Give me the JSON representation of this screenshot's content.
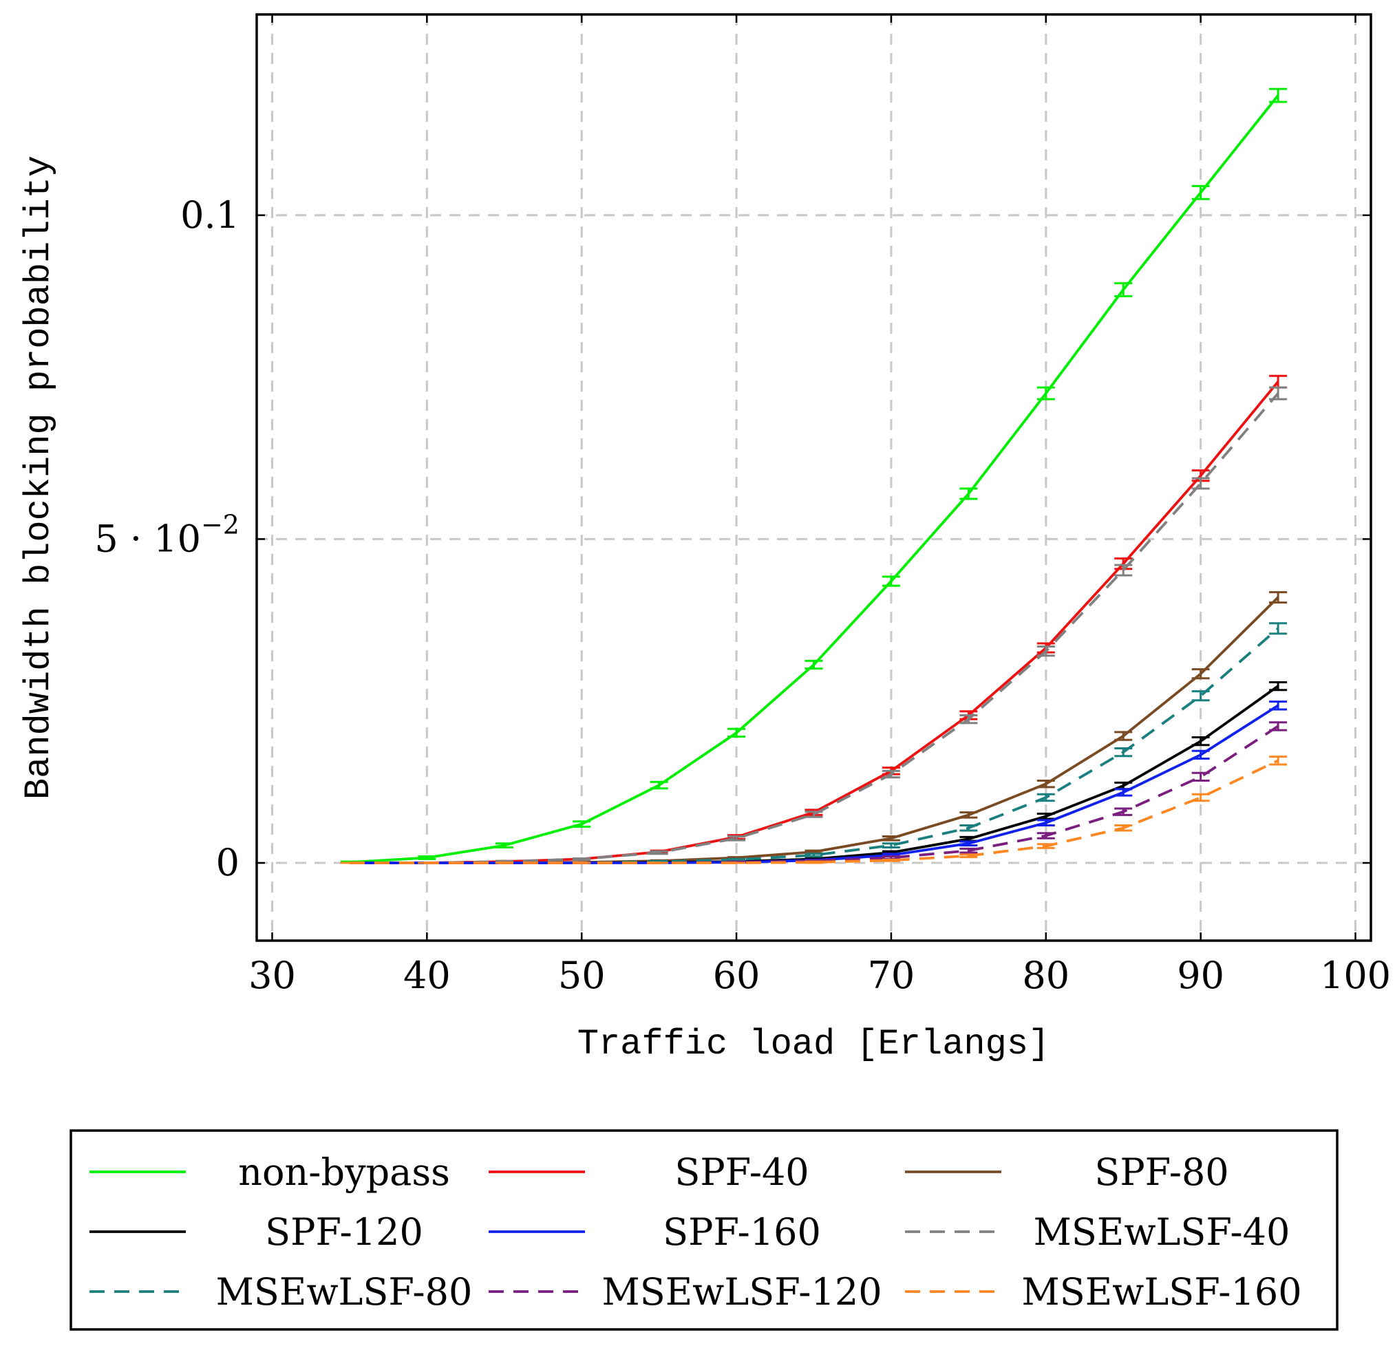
{
  "chart_data": {
    "type": "line",
    "title": "",
    "xlabel": "Traffic load [Erlangs]",
    "ylabel": "Bandwidth blocking probability",
    "xlim": [
      29,
      101
    ],
    "ylim": [
      -0.012,
      0.131
    ],
    "xticks": [
      30,
      40,
      50,
      60,
      70,
      80,
      90,
      100
    ],
    "xtick_labels": [
      "30",
      "40",
      "50",
      "60",
      "70",
      "80",
      "90",
      "100"
    ],
    "yticks": [
      0,
      0.05,
      0.1
    ],
    "ytick_labels": [
      "0",
      "5 · 10",
      "0.1"
    ],
    "ytick_exponent": "−2",
    "grid": true,
    "error_bars": true,
    "legend_position": "below",
    "x": [
      35,
      40,
      45,
      50,
      55,
      60,
      65,
      70,
      75,
      80,
      85,
      90,
      95
    ],
    "series": [
      {
        "name": "non-bypass",
        "color": "#00ee00",
        "dash": "solid",
        "values": [
          0.0001,
          0.0008,
          0.0027,
          0.006,
          0.012,
          0.0201,
          0.0306,
          0.0435,
          0.057,
          0.0725,
          0.0885,
          0.1035,
          0.1185
        ],
        "errors": [
          0.0001,
          0.0002,
          0.0003,
          0.0004,
          0.0005,
          0.0006,
          0.0006,
          0.0007,
          0.0008,
          0.0009,
          0.001,
          0.001,
          0.001
        ]
      },
      {
        "name": "SPF-40",
        "color": "#ee1111",
        "dash": "solid",
        "values": [
          0,
          0,
          0.0002,
          0.0006,
          0.0017,
          0.004,
          0.0078,
          0.0142,
          0.0228,
          0.0332,
          0.0462,
          0.0598,
          0.0743
        ],
        "errors": [
          0,
          0,
          0.0001,
          0.0001,
          0.0002,
          0.0003,
          0.0004,
          0.0005,
          0.0006,
          0.0007,
          0.0008,
          0.0008,
          0.0009
        ]
      },
      {
        "name": "SPF-80",
        "color": "#7a4a22",
        "dash": "solid",
        "values": [
          0,
          0,
          0,
          0.0001,
          0.0003,
          0.0008,
          0.0017,
          0.0038,
          0.0074,
          0.0122,
          0.0196,
          0.0292,
          0.041
        ],
        "errors": [
          0,
          0,
          0,
          0,
          0.0001,
          0.0001,
          0.0002,
          0.0003,
          0.0004,
          0.0005,
          0.0006,
          0.0007,
          0.0008
        ]
      },
      {
        "name": "SPF-120",
        "color": "#000000",
        "dash": "solid",
        "values": [
          0,
          0,
          0,
          0,
          0.0001,
          0.0002,
          0.0006,
          0.0016,
          0.0037,
          0.0072,
          0.0119,
          0.0188,
          0.0273
        ],
        "errors": [
          0,
          0,
          0,
          0,
          0,
          0.0001,
          0.0001,
          0.0002,
          0.0003,
          0.0004,
          0.0005,
          0.0006,
          0.0006
        ]
      },
      {
        "name": "SPF-160",
        "color": "#1122ee",
        "dash": "solid",
        "values": [
          0,
          0,
          0,
          0,
          0,
          0.0001,
          0.0004,
          0.0012,
          0.003,
          0.0062,
          0.0109,
          0.0167,
          0.0243
        ],
        "errors": [
          0,
          0,
          0,
          0,
          0,
          0.0001,
          0.0001,
          0.0002,
          0.0003,
          0.0004,
          0.0005,
          0.0006,
          0.0006
        ]
      },
      {
        "name": "MSEwLSF-40",
        "color": "#808080",
        "dash": "dashed",
        "values": [
          0,
          0,
          0.0002,
          0.0006,
          0.0016,
          0.0038,
          0.0075,
          0.0137,
          0.0222,
          0.0327,
          0.0452,
          0.0586,
          0.0725
        ],
        "errors": [
          0,
          0,
          0.0001,
          0.0001,
          0.0002,
          0.0003,
          0.0004,
          0.0005,
          0.0006,
          0.0007,
          0.0008,
          0.0008,
          0.0009
        ]
      },
      {
        "name": "MSEwLSF-80",
        "color": "#1a7f7f",
        "dash": "dashed",
        "values": [
          0,
          0,
          0,
          0,
          0.0002,
          0.0005,
          0.0012,
          0.0027,
          0.0054,
          0.0101,
          0.0171,
          0.0258,
          0.0362
        ],
        "errors": [
          0,
          0,
          0,
          0,
          0.0001,
          0.0001,
          0.0002,
          0.0003,
          0.0004,
          0.0005,
          0.0006,
          0.0007,
          0.0008
        ]
      },
      {
        "name": "MSEwLSF-120",
        "color": "#7a1f80",
        "dash": "dashed",
        "values": [
          0,
          0,
          0,
          0,
          0,
          0.0001,
          0.0003,
          0.0008,
          0.0019,
          0.0042,
          0.0079,
          0.0133,
          0.0211
        ],
        "errors": [
          0,
          0,
          0,
          0,
          0,
          0.0001,
          0.0001,
          0.0002,
          0.0003,
          0.0004,
          0.0005,
          0.0006,
          0.0006
        ]
      },
      {
        "name": "MSEwLSF-160",
        "color": "#ff8822",
        "dash": "dashed",
        "values": [
          0,
          0,
          0,
          0,
          0,
          0,
          0.0001,
          0.0004,
          0.0011,
          0.0026,
          0.0054,
          0.0101,
          0.0158
        ],
        "errors": [
          0,
          0,
          0,
          0,
          0,
          0,
          0.0001,
          0.0001,
          0.0002,
          0.0003,
          0.0004,
          0.0005,
          0.0006
        ]
      }
    ]
  }
}
